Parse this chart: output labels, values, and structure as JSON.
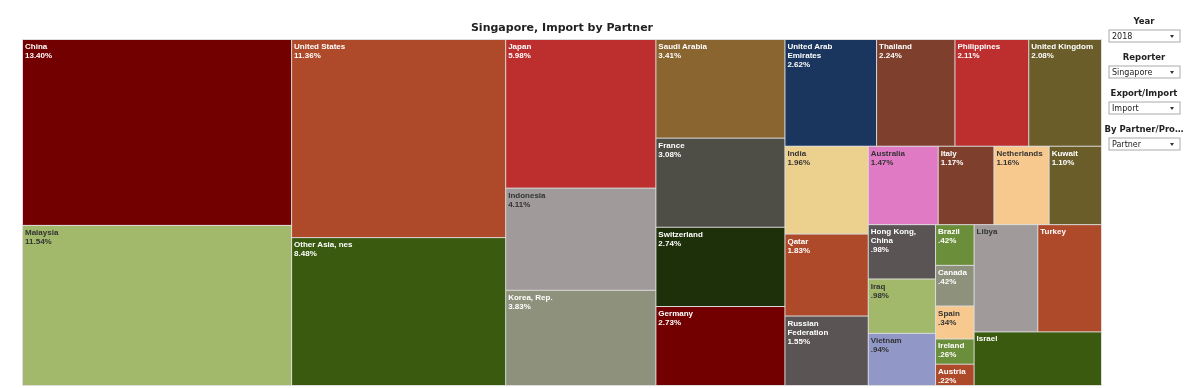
{
  "chart_data": {
    "type": "other",
    "title": "Singapore, Import by Partner",
    "categories": [
      "China",
      "Malaysia",
      "United States",
      "Other Asia, nes",
      "Japan",
      "Indonesia",
      "Korea, Rep.",
      "Saudi Arabia",
      "France",
      "Switzerland",
      "Germany",
      "United Arab Emirates",
      "Thailand",
      "Philippines",
      "United Kingdom",
      "India",
      "Qatar",
      "Russian Federation",
      "Australia",
      "Italy",
      "Netherlands",
      "Kuwait",
      "Hong Kong, China",
      "Iraq",
      "Vietnam",
      "Brazil",
      "Canada",
      "Spain",
      "Ireland",
      "Austria",
      "Libya",
      "Turkey",
      "Israel"
    ],
    "values": [
      13.4,
      11.54,
      11.36,
      8.48,
      5.98,
      4.11,
      3.83,
      3.41,
      3.08,
      2.74,
      2.73,
      2.62,
      2.24,
      2.11,
      2.08,
      1.96,
      1.83,
      1.55,
      1.47,
      1.17,
      1.16,
      1.1,
      0.98,
      0.98,
      0.94,
      0.42,
      0.42,
      0.34,
      0.26,
      0.22,
      null,
      null,
      null
    ],
    "value_labels": [
      "13.40%",
      "11.54%",
      "11.36%",
      "8.48%",
      "5.98%",
      "4.11%",
      "3.83%",
      "3.41%",
      "3.08%",
      "2.74%",
      "2.73%",
      "2.62%",
      "2.24%",
      "2.11%",
      "2.08%",
      "1.96%",
      "1.83%",
      "1.55%",
      "1.47%",
      "1.17%",
      "1.16%",
      "1.10%",
      ".98%",
      ".98%",
      ".94%",
      ".42%",
      ".42%",
      ".34%",
      ".26%",
      ".22%",
      null,
      null,
      null
    ],
    "colors": [
      "#730000",
      "#a2b86a",
      "#ae4a2a",
      "#3a5a10",
      "#bd2e2e",
      "#a09a9a",
      "#8e917c",
      "#8a6530",
      "#4e4e46",
      "#1e300a",
      "#730000",
      "#1a365f",
      "#7e3f2c",
      "#bd2e2e",
      "#6b5d2a",
      "#ecd08e",
      "#ae4a2a",
      "#5a5454",
      "#e07ac5",
      "#7e3f2c",
      "#f7c98e",
      "#6b5d2a",
      "#5a5454",
      "#a2b86a",
      "#9198c8",
      "#6a8e3a",
      "#8e917c",
      "#f7c98e",
      "#6a8e3a",
      "#ae4a2a",
      "#a09a9a",
      "#ae4a2a",
      "#3a5a10"
    ],
    "annotations": [
      "Year",
      "2018",
      "Reporter",
      "Singapore",
      "Export/Import",
      "Import",
      "By Partner/Pro…",
      "Partner"
    ]
  }
}
